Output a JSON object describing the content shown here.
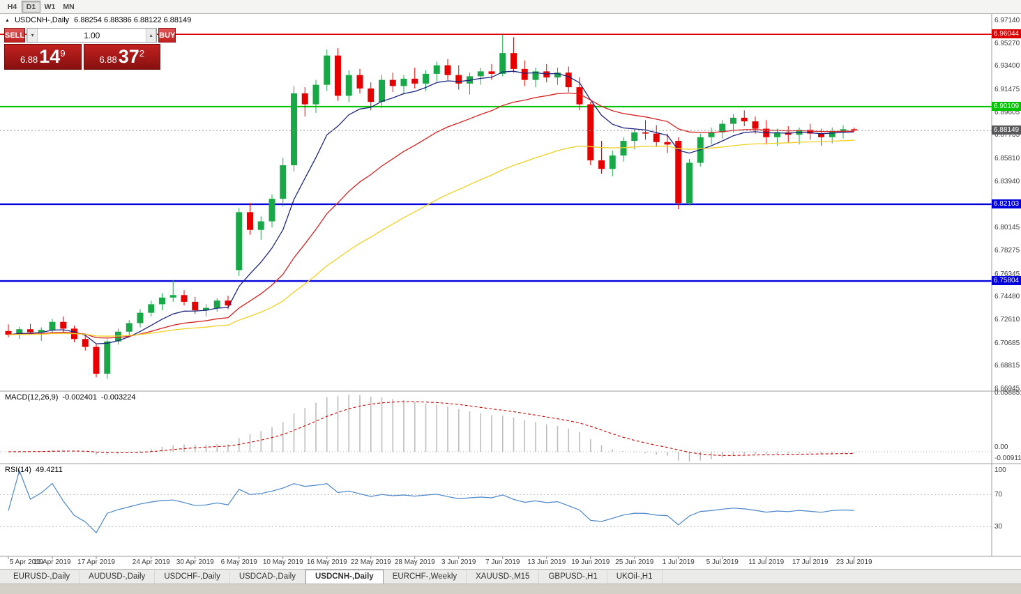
{
  "toolbar": {
    "timeframes": [
      {
        "label": "H4",
        "active": false
      },
      {
        "label": "D1",
        "active": true
      },
      {
        "label": "W1",
        "active": false
      },
      {
        "label": "MN",
        "active": false
      }
    ]
  },
  "window": {
    "title_marker": "▲",
    "symbol_title": "USDCNH-,Daily",
    "title_ohlc": "6.88254 6.88386 6.88122 6.88149"
  },
  "trade_panel": {
    "sell_label": "SELL",
    "buy_label": "BUY",
    "volume": "1.00",
    "spinner_up": "▴",
    "spinner_down": "▾",
    "sell_price": {
      "prefix": "6.88",
      "big": "14",
      "sup": "9"
    },
    "buy_price": {
      "prefix": "6.88",
      "big": "37",
      "sup": "2"
    }
  },
  "chart_data": {
    "type": "candlestick",
    "symbol": "USDCNH-",
    "timeframe": "Daily",
    "price_range": {
      "top": 6.9714,
      "bottom": 6.66945
    },
    "colors": {
      "bull": "#18a848",
      "bear": "#e60000"
    },
    "candles_ohlc": [
      [
        6.717,
        6.7225,
        6.712,
        6.714
      ],
      [
        6.714,
        6.7205,
        6.7105,
        6.7185
      ],
      [
        6.7185,
        6.723,
        6.714,
        6.716
      ],
      [
        6.716,
        6.72,
        6.709,
        6.718
      ],
      [
        6.718,
        6.727,
        6.715,
        6.7245
      ],
      [
        6.7245,
        6.729,
        6.716,
        6.719
      ],
      [
        6.719,
        6.7215,
        6.708,
        6.7105
      ],
      [
        6.7105,
        6.714,
        6.701,
        6.704
      ],
      [
        6.704,
        6.707,
        6.679,
        6.682
      ],
      [
        6.682,
        6.71,
        6.6775,
        6.7085
      ],
      [
        6.7085,
        6.719,
        6.706,
        6.7165
      ],
      [
        6.7165,
        6.726,
        6.713,
        6.7235
      ],
      [
        6.7235,
        6.735,
        6.72,
        6.732
      ],
      [
        6.732,
        6.742,
        6.729,
        6.739
      ],
      [
        6.739,
        6.748,
        6.734,
        6.7445
      ],
      [
        6.7445,
        6.759,
        6.741,
        6.7465
      ],
      [
        6.7465,
        6.7505,
        6.738,
        6.741
      ],
      [
        6.741,
        6.745,
        6.731,
        6.734
      ],
      [
        6.734,
        6.739,
        6.729,
        6.736
      ],
      [
        6.736,
        6.744,
        6.733,
        6.742
      ],
      [
        6.742,
        6.746,
        6.735,
        6.738
      ],
      [
        6.767,
        6.818,
        6.762,
        6.8145
      ],
      [
        6.8145,
        6.822,
        6.796,
        6.8
      ],
      [
        6.8,
        6.811,
        6.792,
        6.807
      ],
      [
        6.807,
        6.829,
        6.802,
        6.8255
      ],
      [
        6.8255,
        6.859,
        6.819,
        6.853
      ],
      [
        6.853,
        6.918,
        6.848,
        6.912
      ],
      [
        6.912,
        6.917,
        6.893,
        6.903
      ],
      [
        6.903,
        6.923,
        6.896,
        6.919
      ],
      [
        6.919,
        6.948,
        6.914,
        6.943
      ],
      [
        6.943,
        6.949,
        6.906,
        6.91
      ],
      [
        6.91,
        6.931,
        6.905,
        6.927
      ],
      [
        6.927,
        6.932,
        6.912,
        6.916
      ],
      [
        6.916,
        6.921,
        6.898,
        6.905
      ],
      [
        6.905,
        6.927,
        6.9,
        6.923
      ],
      [
        6.923,
        6.929,
        6.913,
        6.918
      ],
      [
        6.918,
        6.927,
        6.911,
        6.924
      ],
      [
        6.924,
        6.933,
        6.916,
        6.92
      ],
      [
        6.92,
        6.931,
        6.914,
        6.928
      ],
      [
        6.928,
        6.938,
        6.922,
        6.935
      ],
      [
        6.935,
        6.94,
        6.923,
        6.927
      ],
      [
        6.927,
        6.935,
        6.915,
        6.92
      ],
      [
        6.92,
        6.929,
        6.911,
        6.926
      ],
      [
        6.926,
        6.933,
        6.919,
        6.93
      ],
      [
        6.93,
        6.936,
        6.923,
        6.928
      ],
      [
        6.928,
        6.96,
        6.926,
        6.945
      ],
      [
        6.945,
        6.958,
        6.929,
        6.932
      ],
      [
        6.932,
        6.939,
        6.918,
        6.923
      ],
      [
        6.923,
        6.933,
        6.917,
        6.93
      ],
      [
        6.93,
        6.936,
        6.921,
        6.925
      ],
      [
        6.925,
        6.933,
        6.919,
        6.929
      ],
      [
        6.929,
        6.934,
        6.913,
        6.917
      ],
      [
        6.917,
        6.925,
        6.898,
        6.903
      ],
      [
        6.903,
        6.905,
        6.853,
        6.857
      ],
      [
        6.857,
        6.873,
        6.846,
        6.85
      ],
      [
        6.85,
        6.865,
        6.844,
        6.861
      ],
      [
        6.861,
        6.876,
        6.856,
        6.873
      ],
      [
        6.873,
        6.883,
        6.866,
        6.88
      ],
      [
        6.88,
        6.89,
        6.874,
        6.879
      ],
      [
        6.879,
        6.886,
        6.868,
        6.872
      ],
      [
        6.872,
        6.879,
        6.863,
        6.87
      ],
      [
        6.873,
        6.876,
        6.817,
        6.822
      ],
      [
        6.822,
        6.858,
        6.82,
        6.855
      ],
      [
        6.855,
        6.879,
        6.852,
        6.876
      ],
      [
        6.876,
        6.884,
        6.87,
        6.88
      ],
      [
        6.88,
        6.89,
        6.875,
        6.887
      ],
      [
        6.887,
        6.895,
        6.88,
        6.892
      ],
      [
        6.892,
        6.898,
        6.885,
        6.889
      ],
      [
        6.889,
        6.893,
        6.879,
        6.883
      ],
      [
        6.883,
        6.89,
        6.87,
        6.876
      ],
      [
        6.876,
        6.883,
        6.869,
        6.88
      ],
      [
        6.88,
        6.885,
        6.872,
        6.878
      ],
      [
        6.878,
        6.884,
        6.87,
        6.882
      ],
      [
        6.882,
        6.887,
        6.874,
        6.879
      ],
      [
        6.879,
        6.883,
        6.869,
        6.876
      ],
      [
        6.876,
        6.884,
        6.871,
        6.881
      ],
      [
        6.881,
        6.886,
        6.875,
        6.8826
      ],
      [
        6.88254,
        6.88386,
        6.88122,
        6.88149
      ]
    ],
    "x_labels": [
      {
        "i": 0,
        "t": "5 Apr 2019"
      },
      {
        "i": 4,
        "t": "11 Apr 2019"
      },
      {
        "i": 8,
        "t": "17 Apr 2019"
      },
      {
        "i": 13,
        "t": "24 Apr 2019"
      },
      {
        "i": 17,
        "t": "30 Apr 2019"
      },
      {
        "i": 21,
        "t": "6 May 2019"
      },
      {
        "i": 25,
        "t": "10 May 2019"
      },
      {
        "i": 29,
        "t": "16 May 2019"
      },
      {
        "i": 33,
        "t": "22 May 2019"
      },
      {
        "i": 37,
        "t": "28 May 2019"
      },
      {
        "i": 41,
        "t": "3 Jun 2019"
      },
      {
        "i": 45,
        "t": "7 Jun 2019"
      },
      {
        "i": 49,
        "t": "13 Jun 2019"
      },
      {
        "i": 53,
        "t": "19 Jun 2019"
      },
      {
        "i": 57,
        "t": "25 Jun 2019"
      },
      {
        "i": 61,
        "t": "1 Jul 2019"
      },
      {
        "i": 65,
        "t": "5 Jul 2019"
      },
      {
        "i": 69,
        "t": "11 Jul 2019"
      },
      {
        "i": 73,
        "t": "17 Jul 2019"
      },
      {
        "i": 77,
        "t": "23 Jul 2019"
      }
    ],
    "price_axis_labels": [
      "6.97140",
      "6.95270",
      "6.93400",
      "6.91475",
      "6.89605",
      "6.87735",
      "6.85810",
      "6.83940",
      "6.80145",
      "6.78275",
      "6.76345",
      "6.74480",
      "6.72610",
      "6.70685",
      "6.68815",
      "6.66945"
    ],
    "hlines": [
      {
        "price": 6.96044,
        "label": "6.96044",
        "color": "#dd0000",
        "width": 1.6
      },
      {
        "price": 6.90109,
        "label": "6.90109",
        "color": "#00c400",
        "width": 2.2
      },
      {
        "price": 6.82103,
        "label": "6.82103",
        "color": "#0000dd",
        "width": 2.4
      },
      {
        "price": 6.75804,
        "label": "6.75804",
        "color": "#0000dd",
        "width": 2.4
      }
    ],
    "current_price": {
      "price": 6.88149,
      "label": "6.88149",
      "tag_color": "#58585a"
    },
    "moving_averages": [
      {
        "period": 8,
        "color": "#1a237e"
      },
      {
        "period": 21,
        "color": "#d92020"
      },
      {
        "period": 45,
        "color": "#f0d020"
      }
    ],
    "macd": {
      "title": "MACD(12,26,9)",
      "value_main": "-0.002401",
      "value_signal": "-0.003224",
      "fast": 12,
      "slow": 26,
      "signal": 9,
      "axis_labels": [
        "0.058851",
        "0.00",
        "-0.009116"
      ],
      "bar_color": "#bdbdbd",
      "signal_color": "#cc0000"
    },
    "rsi": {
      "title": "RSI(14)",
      "value": "49.4211",
      "period": 14,
      "axis_labels": [
        "100",
        "70",
        "30"
      ],
      "levels": [
        70,
        30
      ],
      "color": "#4a86c8"
    }
  },
  "tabs": {
    "items": [
      {
        "label": "EURUSD-,Daily",
        "active": false
      },
      {
        "label": "AUDUSD-,Daily",
        "active": false
      },
      {
        "label": "USDCHF-,Daily",
        "active": false
      },
      {
        "label": "USDCAD-,Daily",
        "active": false
      },
      {
        "label": "USDCNH-,Daily",
        "active": true
      },
      {
        "label": "EURCHF-,Weekly",
        "active": false
      },
      {
        "label": "XAUUSD-,M15",
        "active": false
      },
      {
        "label": "GBPUSD-,H1",
        "active": false
      },
      {
        "label": "UKOil-,H1",
        "active": false
      }
    ]
  }
}
